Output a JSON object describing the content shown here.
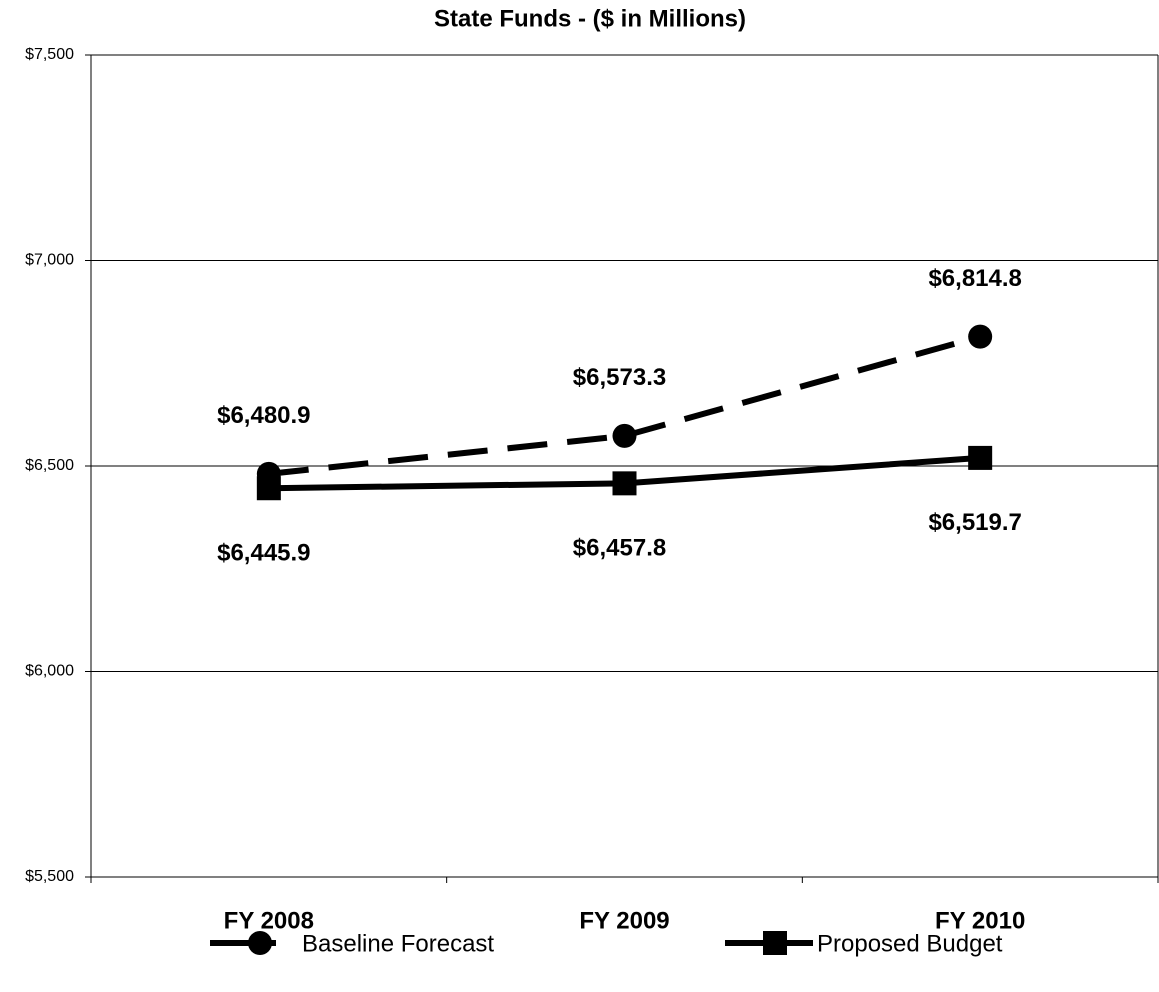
{
  "chart_data": {
    "type": "line",
    "title": "State Funds - ($ in Millions)",
    "categories": [
      "FY 2008",
      "FY 2009",
      "FY 2010"
    ],
    "series": [
      {
        "name": "Baseline Forecast",
        "color": "#000000",
        "line_style": "dashed",
        "marker": "circle",
        "label_position": "above",
        "values": [
          6480.9,
          6573.3,
          6814.8
        ],
        "value_labels": [
          "$6,480.9",
          "$6,573.3",
          "$6,814.8"
        ]
      },
      {
        "name": "Proposed Budget",
        "color": "#000000",
        "line_style": "solid",
        "marker": "square",
        "label_position": "below",
        "values": [
          6445.9,
          6457.8,
          6519.7
        ],
        "value_labels": [
          "$6,445.9",
          "$6,457.8",
          "$6,519.7"
        ]
      }
    ],
    "ylim": [
      5500,
      7500
    ],
    "yticks": [
      {
        "value": 5500,
        "label": "$5,500"
      },
      {
        "value": 6000,
        "label": "$6,000"
      },
      {
        "value": 6500,
        "label": "$6,500"
      },
      {
        "value": 7000,
        "label": "$7,000"
      },
      {
        "value": 7500,
        "label": "$7,500"
      }
    ],
    "grid": true,
    "legend": "bottom"
  }
}
